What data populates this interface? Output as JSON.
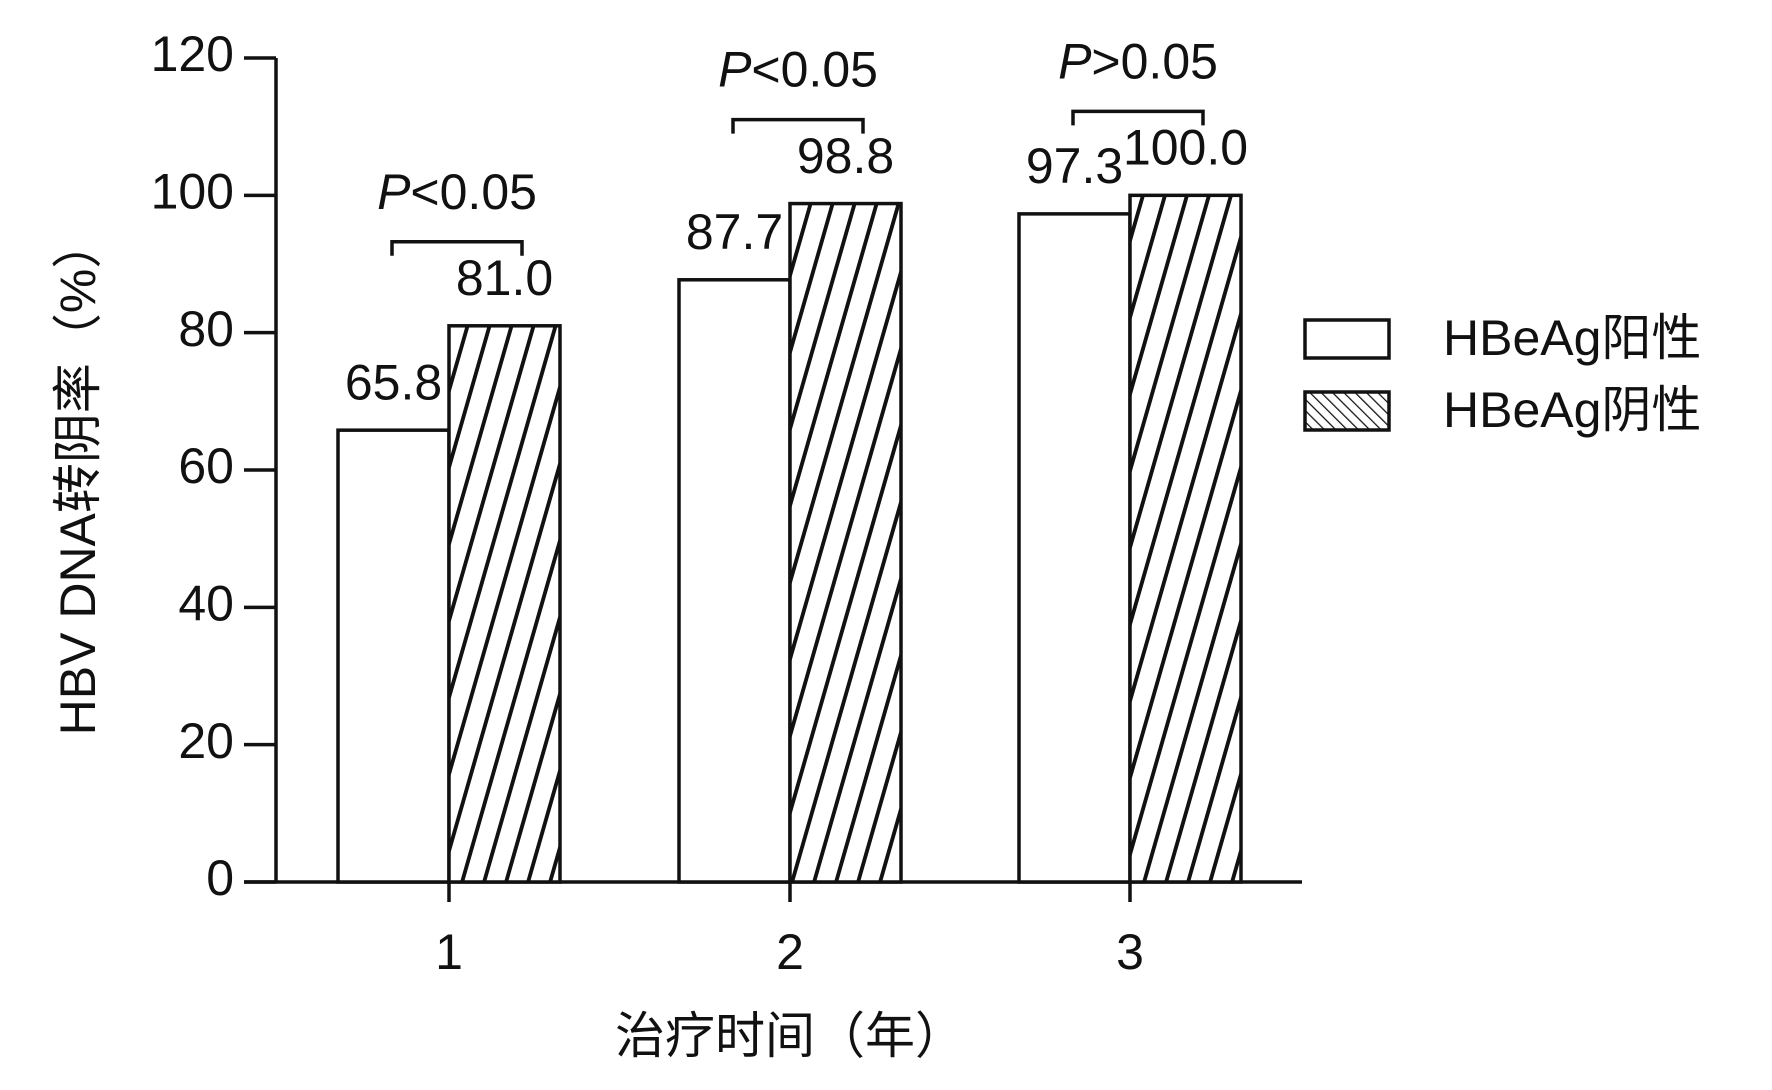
{
  "chart_data": {
    "type": "bar",
    "y_label": "HBV DNA转阴率（%）",
    "x_label": "治疗时间（年）",
    "categories": [
      "1",
      "2",
      "3"
    ],
    "series": [
      {
        "name": "HBeAg阳性",
        "color": "#ffffff",
        "values": [
          65.8,
          87.7,
          97.3
        ],
        "value_labels": [
          "65.8",
          "87.7",
          "97.3"
        ]
      },
      {
        "name": "HBeAg阴性",
        "color": "hatched",
        "values": [
          81,
          98.8,
          100
        ],
        "value_labels": [
          "81.0",
          "98.8",
          "100.0"
        ]
      }
    ],
    "annotations": [
      "P<0.05",
      "P<0.05",
      "P>0.05"
    ],
    "ylim": [
      0,
      120
    ],
    "yticks": [
      0,
      20,
      40,
      60,
      80,
      100,
      120
    ],
    "grid": false,
    "legend": "right"
  }
}
